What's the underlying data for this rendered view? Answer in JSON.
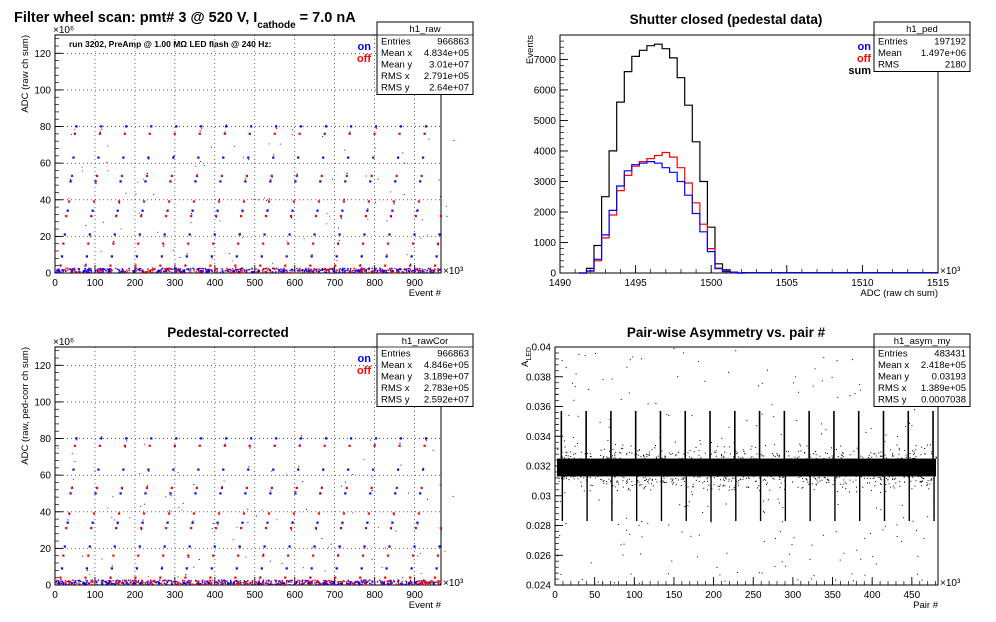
{
  "figure_title": {
    "prefix": "Filter wheel scan: pmt#   3 @   520 V, I",
    "subscript": "cathode",
    "suffix": " = 7.0 nA"
  },
  "chart_data": [
    {
      "id": "raw",
      "type": "scatter",
      "title": "",
      "xlabel": "Event #",
      "ylabel": "ADC (raw ch sum)",
      "x_exponent": "×10³",
      "y_exponent": "×10⁶",
      "xlim": [
        0,
        966
      ],
      "ylim": [
        0,
        130
      ],
      "xticks": [
        "0",
        "100",
        "200",
        "300",
        "400",
        "500",
        "600",
        "700",
        "800",
        "900"
      ],
      "yticks": [
        "0",
        "20",
        "40",
        "60",
        "80",
        "100",
        "120"
      ],
      "grid": true,
      "note": "run 3202, PreAmp @ 1.00 MΩ   LED flash @  240 Hz:",
      "legend": [
        {
          "name": "on",
          "color": "#0000ff"
        },
        {
          "name": "off",
          "color": "#ff0000"
        }
      ],
      "stats": {
        "name": "h1_raw",
        "rows": [
          [
            "Entries",
            "966863"
          ],
          [
            "Mean x",
            "4.834e+05"
          ],
          [
            "Mean y",
            "3.01e+07"
          ],
          [
            "RMS x",
            "2.791e+05"
          ],
          [
            "RMS y",
            "2.64e+07"
          ]
        ]
      },
      "levels": [
        1,
        4,
        9,
        16,
        21,
        31,
        34,
        39,
        50,
        53,
        63,
        76,
        80
      ],
      "period": 62.5
    },
    {
      "id": "ped",
      "type": "line",
      "title": "Shutter closed (pedestal data)",
      "xlabel": "ADC (raw ch sum)",
      "ylabel": "Events",
      "x_exponent": "×10³",
      "xlim": [
        1490,
        1515
      ],
      "ylim": [
        0,
        7800
      ],
      "xticks": [
        "1490",
        "1495",
        "1500",
        "1505",
        "1510",
        "1515"
      ],
      "yticks": [
        "0",
        "1000",
        "2000",
        "3000",
        "4000",
        "5000",
        "6000",
        "7000"
      ],
      "grid": false,
      "legend": [
        {
          "name": "on",
          "color": "#0000ff"
        },
        {
          "name": "off",
          "color": "#ff0000"
        },
        {
          "name": "sum",
          "color": "#000000"
        }
      ],
      "stats": {
        "name": "h1_ped",
        "rows": [
          [
            "Entries",
            "197192"
          ],
          [
            "Mean",
            "1.497e+06"
          ],
          [
            "RMS",
            "2180"
          ]
        ]
      },
      "series": [
        {
          "name": "sum",
          "color": "#000000",
          "x": [
            1491.5,
            1492,
            1492.5,
            1493,
            1493.5,
            1494,
            1494.5,
            1495,
            1495.5,
            1496,
            1496.5,
            1497,
            1497.5,
            1498,
            1498.5,
            1499,
            1499.5,
            1500,
            1500.5,
            1501,
            1501.5,
            1502
          ],
          "values": [
            0,
            150,
            900,
            2500,
            4000,
            5600,
            6600,
            7100,
            7300,
            7450,
            7500,
            7350,
            7050,
            6400,
            5500,
            4300,
            3000,
            1500,
            300,
            100,
            30,
            0
          ]
        },
        {
          "name": "off",
          "color": "#ff0000",
          "x": [
            1491.5,
            1492,
            1492.5,
            1493,
            1493.5,
            1494,
            1494.5,
            1495,
            1495.5,
            1496,
            1496.5,
            1497,
            1497.5,
            1498,
            1498.5,
            1499,
            1499.5,
            1500,
            1500.5,
            1501,
            1501.5,
            1502
          ],
          "values": [
            0,
            60,
            400,
            1150,
            1900,
            2700,
            3200,
            3500,
            3650,
            3750,
            3850,
            3950,
            3800,
            3450,
            2950,
            2300,
            1600,
            800,
            160,
            50,
            15,
            0
          ]
        },
        {
          "name": "on",
          "color": "#0000ff",
          "x": [
            1491.5,
            1492,
            1492.5,
            1493,
            1493.5,
            1494,
            1494.5,
            1495,
            1495.5,
            1496,
            1496.5,
            1497,
            1497.5,
            1498,
            1498.5,
            1499,
            1499.5,
            1500,
            1500.5,
            1501,
            1501.5,
            1502
          ],
          "values": [
            0,
            70,
            450,
            1250,
            2050,
            2850,
            3350,
            3550,
            3600,
            3650,
            3600,
            3450,
            3300,
            3000,
            2550,
            1950,
            1350,
            700,
            140,
            50,
            15,
            0
          ]
        }
      ]
    },
    {
      "id": "cor",
      "type": "scatter",
      "title": "Pedestal-corrected",
      "xlabel": "Event #",
      "ylabel": "ADC (raw, ped-corr ch sum)",
      "x_exponent": "×10³",
      "y_exponent": "×10⁶",
      "xlim": [
        0,
        966
      ],
      "ylim": [
        0,
        130
      ],
      "xticks": [
        "0",
        "100",
        "200",
        "300",
        "400",
        "500",
        "600",
        "700",
        "800",
        "900"
      ],
      "yticks": [
        "0",
        "20",
        "40",
        "60",
        "80",
        "100",
        "120"
      ],
      "grid": true,
      "legend": [
        {
          "name": "on",
          "color": "#0000ff"
        },
        {
          "name": "off",
          "color": "#ff0000"
        }
      ],
      "stats": {
        "name": "h1_rawCor",
        "rows": [
          [
            "Entries",
            "966863"
          ],
          [
            "Mean x",
            "4.846e+05"
          ],
          [
            "Mean y",
            "3.189e+07"
          ],
          [
            "RMS x",
            "2.783e+05"
          ],
          [
            "RMS y",
            "2.592e+07"
          ]
        ]
      },
      "levels": [
        1,
        4,
        9,
        16,
        21,
        31,
        34,
        39,
        50,
        53,
        63,
        76,
        80
      ],
      "period": 62.5
    },
    {
      "id": "asym",
      "type": "scatter",
      "title": "Pair-wise Asymmetry vs. pair #",
      "xlabel": "Pair #",
      "ylabel": "A",
      "ylabel_sub": "LED",
      "x_exponent": "×10³",
      "xlim": [
        0,
        483
      ],
      "ylim": [
        0.024,
        0.04
      ],
      "xticks": [
        "0",
        "50",
        "100",
        "150",
        "200",
        "250",
        "300",
        "350",
        "400",
        "450"
      ],
      "yticks": [
        "0.024",
        "0.026",
        "0.028",
        "0.03",
        "0.032",
        "0.034",
        "0.036",
        "0.038",
        "0.04"
      ],
      "grid": false,
      "stats": {
        "name": "h1_asym_my",
        "rows": [
          [
            "Entries",
            "483431"
          ],
          [
            "Mean x",
            "2.418e+05"
          ],
          [
            "Mean y",
            "0.03193"
          ],
          [
            "RMS x",
            "1.389e+05"
          ],
          [
            "RMS y",
            "0.0007038"
          ]
        ]
      },
      "band_center": 0.0319,
      "spike_period": 31.25
    }
  ]
}
